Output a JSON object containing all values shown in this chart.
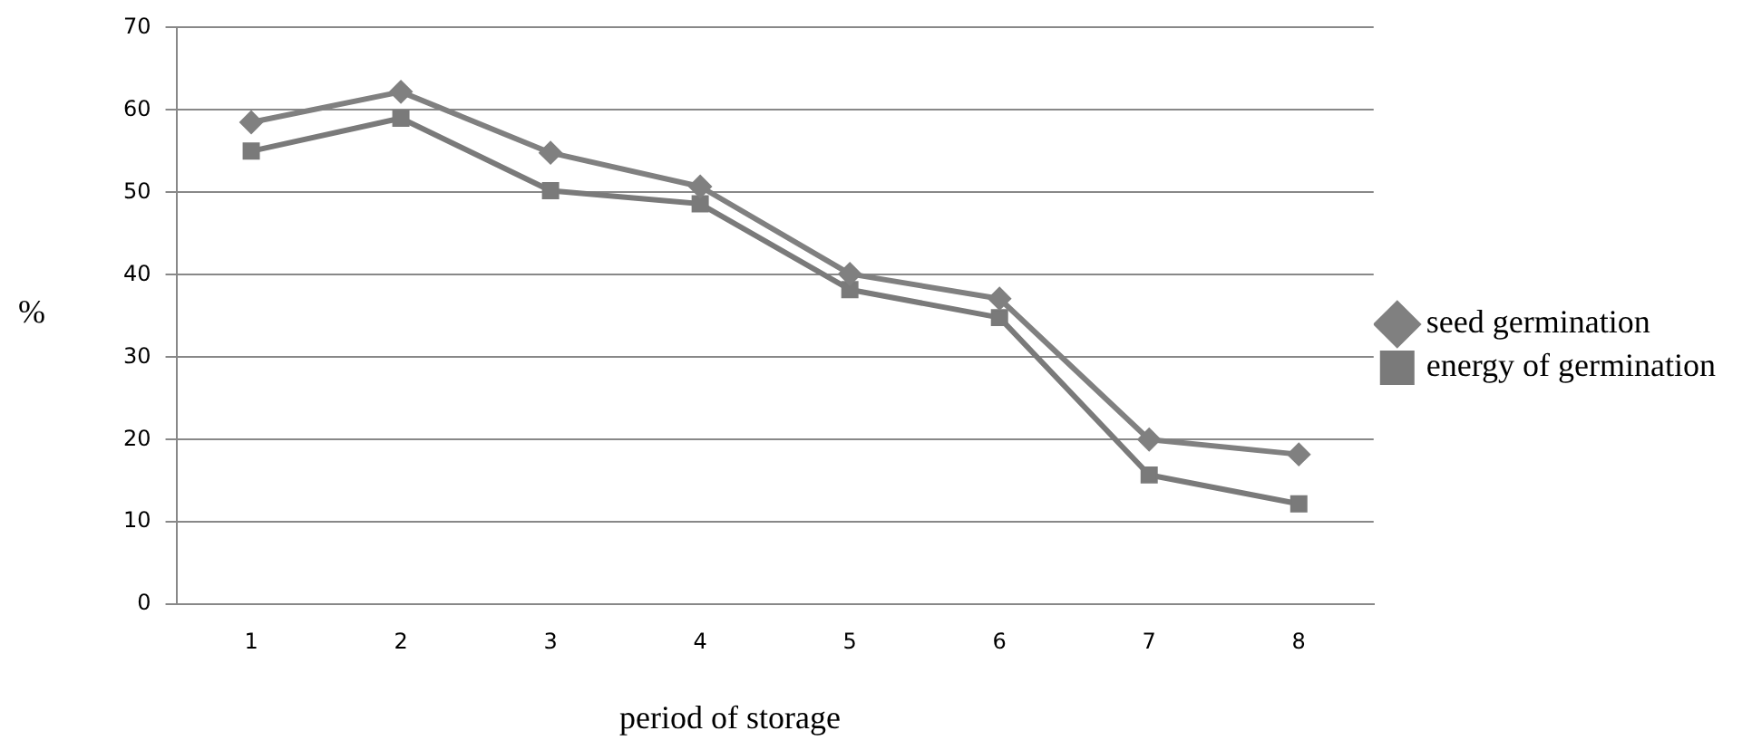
{
  "chart_data": {
    "type": "line",
    "xlabel": "period of storage",
    "ylabel": "%",
    "categories": [
      "1",
      "2",
      "3",
      "4",
      "5",
      "6",
      "7",
      "8"
    ],
    "ylim": [
      0,
      70
    ],
    "yticks": [
      0,
      10,
      20,
      30,
      40,
      50,
      60,
      70
    ],
    "grid": "y",
    "legend": "right",
    "series": [
      {
        "name": "seed germination",
        "color": "#808080",
        "marker": "diamond",
        "values": [
          58.5,
          62.2,
          54.8,
          50.7,
          40.1,
          37.1,
          20,
          18.2
        ]
      },
      {
        "name": "energy of germination",
        "color": "#7a7a7a",
        "marker": "square",
        "values": [
          55,
          59,
          50.2,
          48.6,
          38.2,
          34.8,
          15.7,
          12.2
        ]
      }
    ]
  }
}
